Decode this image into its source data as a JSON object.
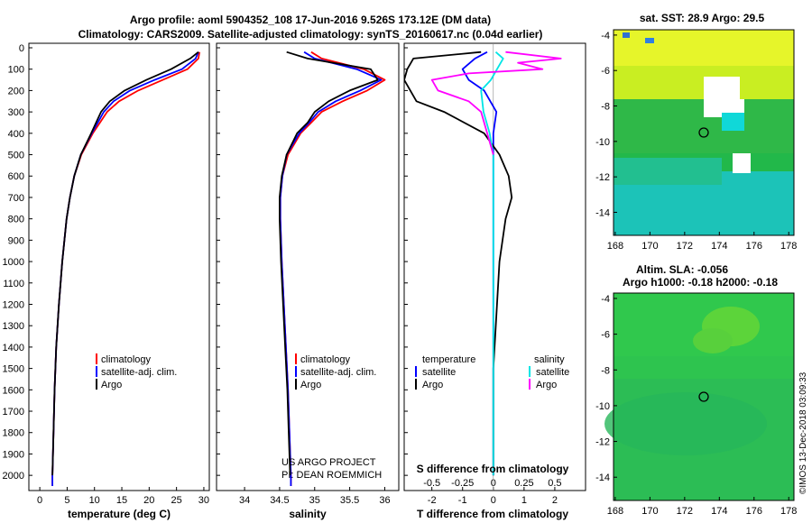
{
  "header": {
    "title_line1": "Argo profile: aoml 5904352_108 17-Jun-2016 9.526S 173.12E (DM data)",
    "title_line2": "Climatology: CARS2009. Satellite-adjusted climatology: synTS_20160617.nc (0.04d earlier)"
  },
  "colors": {
    "climatology": "#ff0000",
    "satellite": "#0000ff",
    "argo": "#000000",
    "argo_salinity": "#ff00ff",
    "sat_salinity": "#00e5e5"
  },
  "depth_axis": {
    "ticks": [
      "0",
      "100",
      "200",
      "300",
      "400",
      "500",
      "600",
      "700",
      "800",
      "900",
      "1000",
      "1100",
      "1200",
      "1300",
      "1400",
      "1500",
      "1600",
      "1700",
      "1800",
      "1900",
      "2000"
    ]
  },
  "chart_data": [
    {
      "type": "line",
      "name": "temperature",
      "xlabel": "temperature (deg C)",
      "xlim": [
        -2,
        31
      ],
      "ylim": [
        2070,
        0
      ],
      "xticks": [
        "0",
        "5",
        "10",
        "15",
        "20",
        "25",
        "30"
      ],
      "legend": [
        "climatology",
        "satellite-adj. clim.",
        "Argo"
      ],
      "series": [
        {
          "name": "climatology",
          "color": "#ff0000",
          "depth": [
            20,
            50,
            100,
            150,
            200,
            250,
            300,
            350,
            400,
            500,
            600,
            700,
            800,
            900,
            1000,
            1200,
            1400,
            1600,
            1800,
            2000,
            2050
          ],
          "values": [
            29.2,
            29.0,
            27.0,
            22.5,
            18.0,
            14.5,
            12.3,
            11.0,
            9.7,
            7.6,
            6.3,
            5.5,
            4.9,
            4.5,
            4.1,
            3.5,
            3.0,
            2.7,
            2.5,
            2.3,
            2.3
          ]
        },
        {
          "name": "satellite-adj. clim.",
          "color": "#0000ff",
          "depth": [
            20,
            50,
            100,
            150,
            200,
            250,
            300,
            350,
            400,
            500,
            600,
            700,
            800,
            900,
            1000,
            1200,
            1400,
            1600,
            1800,
            2000,
            2050
          ],
          "values": [
            29.0,
            28.5,
            26.0,
            21.0,
            16.5,
            13.5,
            11.7,
            10.6,
            9.5,
            7.5,
            6.3,
            5.5,
            4.9,
            4.5,
            4.1,
            3.5,
            3.0,
            2.7,
            2.5,
            2.3,
            2.3
          ]
        },
        {
          "name": "Argo",
          "color": "#000000",
          "depth": [
            20,
            50,
            100,
            150,
            200,
            250,
            300,
            350,
            400,
            500,
            600,
            700,
            800,
            900,
            1000,
            1200,
            1400,
            1600,
            1800,
            2000
          ],
          "values": [
            29.0,
            27.5,
            24.0,
            19.5,
            15.5,
            12.8,
            11.2,
            10.3,
            9.4,
            7.5,
            6.3,
            5.5,
            4.9,
            4.5,
            4.1,
            3.5,
            3.0,
            2.7,
            2.5,
            2.3
          ]
        }
      ]
    },
    {
      "type": "line",
      "name": "salinity",
      "xlabel": "salinity",
      "xlim": [
        33.6,
        36.2
      ],
      "ylim": [
        2070,
        0
      ],
      "xticks": [
        "34",
        "34.5",
        "35",
        "35.5",
        "36"
      ],
      "legend": [
        "climatology",
        "satellite-adj. clim.",
        "Argo"
      ],
      "annotation": [
        "US ARGO PROJECT",
        "PI: DEAN ROEMMICH"
      ],
      "series": [
        {
          "name": "climatology",
          "color": "#ff0000",
          "depth": [
            20,
            50,
            100,
            150,
            200,
            250,
            300,
            350,
            400,
            500,
            600,
            700,
            800,
            900,
            1000,
            1200,
            1400,
            1600,
            1800,
            2000,
            2050
          ],
          "values": [
            34.95,
            35.1,
            35.7,
            36.0,
            35.75,
            35.4,
            35.1,
            34.95,
            34.8,
            34.62,
            34.54,
            34.51,
            34.51,
            34.52,
            34.53,
            34.56,
            34.59,
            34.62,
            34.64,
            34.66,
            34.66
          ]
        },
        {
          "name": "satellite-adj. clim.",
          "color": "#0000ff",
          "depth": [
            20,
            50,
            100,
            150,
            200,
            250,
            300,
            350,
            400,
            500,
            600,
            700,
            800,
            900,
            1000,
            1200,
            1400,
            1600,
            1800,
            2000,
            2050
          ],
          "values": [
            34.85,
            35.0,
            35.6,
            35.95,
            35.65,
            35.3,
            35.05,
            34.92,
            34.78,
            34.6,
            34.54,
            34.51,
            34.51,
            34.52,
            34.53,
            34.56,
            34.59,
            34.62,
            34.64,
            34.66,
            34.66
          ]
        },
        {
          "name": "Argo",
          "color": "#000000",
          "depth": [
            20,
            50,
            100,
            150,
            200,
            250,
            300,
            350,
            400,
            500,
            600,
            700,
            800,
            900,
            1000,
            1200,
            1400,
            1600,
            1800,
            2000
          ],
          "values": [
            34.6,
            34.9,
            35.8,
            35.9,
            35.5,
            35.2,
            35.0,
            34.9,
            34.75,
            34.6,
            34.53,
            34.5,
            34.5,
            34.51,
            34.52,
            34.55,
            34.58,
            34.61,
            34.63,
            34.65
          ]
        }
      ]
    },
    {
      "type": "line",
      "name": "differences",
      "xlabel": "T difference from climatology",
      "xlabel_top": "S difference from climatology",
      "xlim": [
        -2.9,
        3.0
      ],
      "ylim": [
        2070,
        0
      ],
      "xticks": [
        "-2",
        "-1",
        "0",
        "1",
        "2"
      ],
      "xticks_top": [
        "-0.5",
        "-0.25",
        "0",
        "0.25",
        "0.5"
      ],
      "legend_titles": [
        "temperature",
        "salinity"
      ],
      "legend_left": [
        "satellite",
        "Argo"
      ],
      "legend_right": [
        "satellite",
        "Argo"
      ],
      "series": [
        {
          "name": "T satellite",
          "color": "#0000ff",
          "depth": [
            20,
            50,
            100,
            150,
            200,
            300,
            400,
            500,
            600,
            800,
            1000,
            1500,
            2000
          ],
          "values": [
            -0.2,
            -0.6,
            -1.0,
            -0.8,
            -0.3,
            0.1,
            0.0,
            0.0,
            0.0,
            0.0,
            0.0,
            0.0,
            0.0
          ]
        },
        {
          "name": "T Argo",
          "color": "#000000",
          "depth": [
            20,
            50,
            100,
            150,
            200,
            250,
            300,
            400,
            500,
            600,
            700,
            800,
            1000,
            1500,
            2000
          ],
          "values": [
            -0.4,
            -2.6,
            -2.8,
            -2.9,
            -2.7,
            -2.5,
            -1.6,
            -0.3,
            0.2,
            0.5,
            0.6,
            0.4,
            0.2,
            0.0,
            0.0
          ]
        },
        {
          "name": "S satellite",
          "color": "#00e5e5",
          "depth": [
            20,
            50,
            100,
            150,
            200,
            300,
            400,
            500,
            600,
            800,
            1000,
            1500,
            2000
          ],
          "values": [
            0.02,
            0.08,
            0.03,
            -0.02,
            -0.1,
            -0.08,
            -0.03,
            0.0,
            0.0,
            0.0,
            0.0,
            0.0,
            0.0
          ]
        },
        {
          "name": "S Argo",
          "color": "#ff00ff",
          "depth": [
            20,
            50,
            70,
            100,
            120,
            150,
            200,
            250,
            300,
            400,
            500
          ],
          "values": [
            0.1,
            0.55,
            0.2,
            0.4,
            -0.2,
            -0.5,
            -0.45,
            -0.2,
            -0.1,
            -0.05,
            0.0
          ]
        }
      ]
    },
    {
      "type": "heatmap",
      "name": "SST map",
      "title": "sat. SST: 28.9 Argo: 29.5",
      "xticks": [
        "168",
        "170",
        "172",
        "174",
        "176",
        "178"
      ],
      "yticks": [
        "-4",
        "-6",
        "-8",
        "-10",
        "-12",
        "-14"
      ],
      "xlim": [
        167.9,
        178.3
      ],
      "ylim": [
        -15.3,
        -3.7
      ],
      "marker": {
        "lon": 173.1,
        "lat": -9.5
      }
    },
    {
      "type": "heatmap",
      "name": "SLA map",
      "title": "Altim. SLA: -0.056",
      "subtitle": "Argo h1000: -0.18 h2000: -0.18",
      "xticks": [
        "168",
        "170",
        "172",
        "174",
        "176",
        "178"
      ],
      "yticks": [
        "-4",
        "-6",
        "-8",
        "-10",
        "-12",
        "-14"
      ],
      "xlim": [
        167.9,
        178.3
      ],
      "ylim": [
        -15.3,
        -3.7
      ],
      "marker": {
        "lon": 173.1,
        "lat": -9.5
      }
    }
  ],
  "footer": {
    "credit": "©IMOS 13-Dec-2018 03:09:33"
  }
}
